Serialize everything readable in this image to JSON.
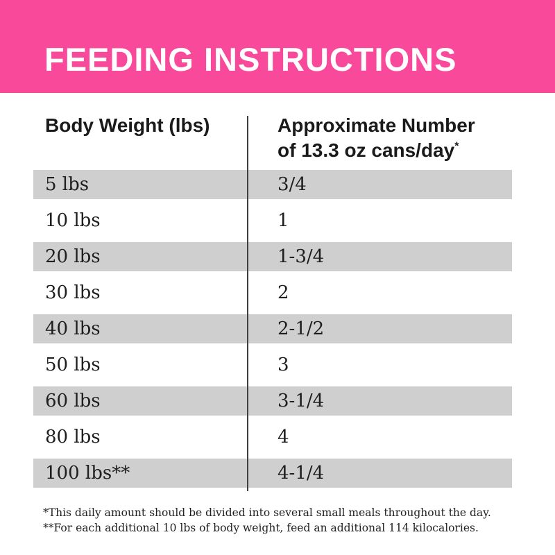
{
  "banner": {
    "title": "FEEDING INSTRUCTIONS",
    "bg_color": "#F9499B",
    "text_color": "#FFFFFF"
  },
  "table": {
    "columns": {
      "weight": {
        "label": "Body Weight (lbs)"
      },
      "cans": {
        "line1": "Approximate Number",
        "line2": "of 13.3 oz cans/day",
        "superscript": "*"
      }
    },
    "rows": [
      {
        "weight": "5 lbs",
        "cans": "3/4"
      },
      {
        "weight": "10 lbs",
        "cans": "1"
      },
      {
        "weight": "20 lbs",
        "cans": "1-3/4"
      },
      {
        "weight": "30 lbs",
        "cans": "2"
      },
      {
        "weight": "40 lbs",
        "cans": "2-1/2"
      },
      {
        "weight": "50 lbs",
        "cans": "3"
      },
      {
        "weight": "60 lbs",
        "cans": "3-1/4"
      },
      {
        "weight": "80 lbs",
        "cans": "4"
      },
      {
        "weight": "100 lbs**",
        "cans": "4-1/4"
      }
    ],
    "stripe_color": "#CFCFCF",
    "divider_color": "#3F3F3F",
    "text_color": "#1E1E1E"
  },
  "footnotes": [
    "*This daily amount should be divided into several small meals throughout the day.",
    "**For each additional 10 lbs of body weight, feed an additional 114 kilocalories."
  ]
}
